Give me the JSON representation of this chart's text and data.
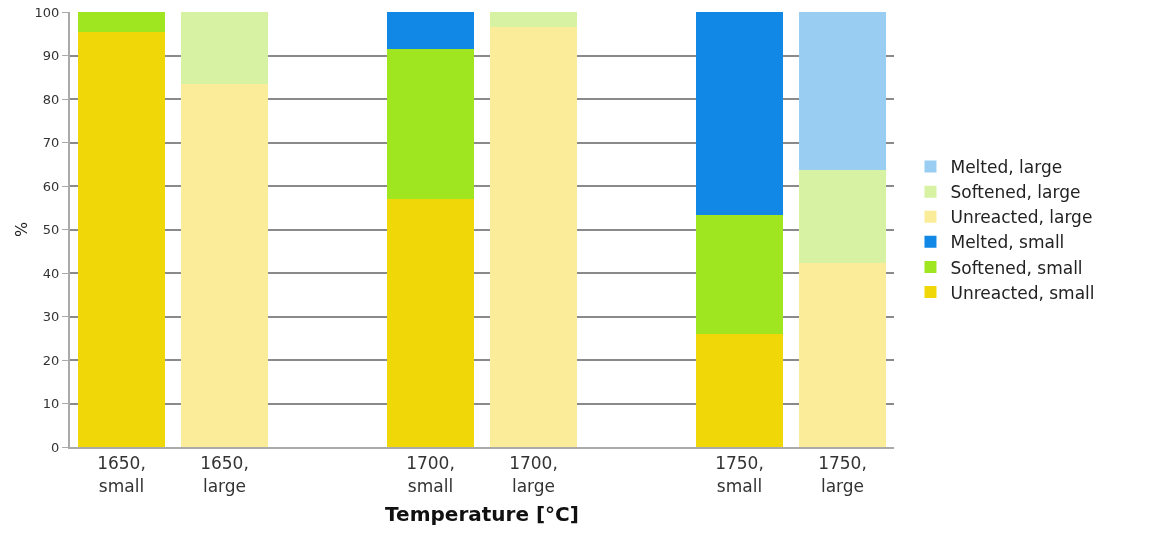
{
  "chart_data": {
    "type": "bar",
    "stacked": true,
    "xlabel": "Temperature [°C]",
    "ylabel": "%",
    "categories": [
      "1650, small",
      "1650, large",
      null,
      "1700, small",
      "1700, large",
      null,
      "1750, small",
      "1750, large"
    ],
    "series": [
      {
        "name": "Unreacted, small",
        "color": "#f0d808",
        "values": [
          95.5,
          null,
          null,
          57,
          null,
          null,
          26,
          null
        ]
      },
      {
        "name": "Softened, small",
        "color": "#a0e620",
        "values": [
          4.5,
          null,
          null,
          34.5,
          null,
          null,
          27.3,
          null
        ]
      },
      {
        "name": "Melted, small",
        "color": "#1188e6",
        "values": [
          null,
          null,
          null,
          8.5,
          null,
          null,
          46.7,
          null
        ]
      },
      {
        "name": "Unreacted, large",
        "color": "#fbec9a",
        "values": [
          null,
          83.5,
          null,
          null,
          96.5,
          null,
          null,
          42.3
        ]
      },
      {
        "name": "Softened, large",
        "color": "#d6f2a2",
        "values": [
          null,
          16.5,
          null,
          null,
          3.5,
          null,
          null,
          21.3
        ]
      },
      {
        "name": "Melted, large",
        "color": "#99cdf2",
        "values": [
          null,
          null,
          null,
          null,
          null,
          null,
          null,
          36.4
        ]
      }
    ],
    "ylim": [
      0,
      100
    ],
    "yticks": [
      0,
      10,
      20,
      30,
      40,
      50,
      60,
      70,
      80,
      90,
      100
    ],
    "grid": "y",
    "legend": "right"
  }
}
